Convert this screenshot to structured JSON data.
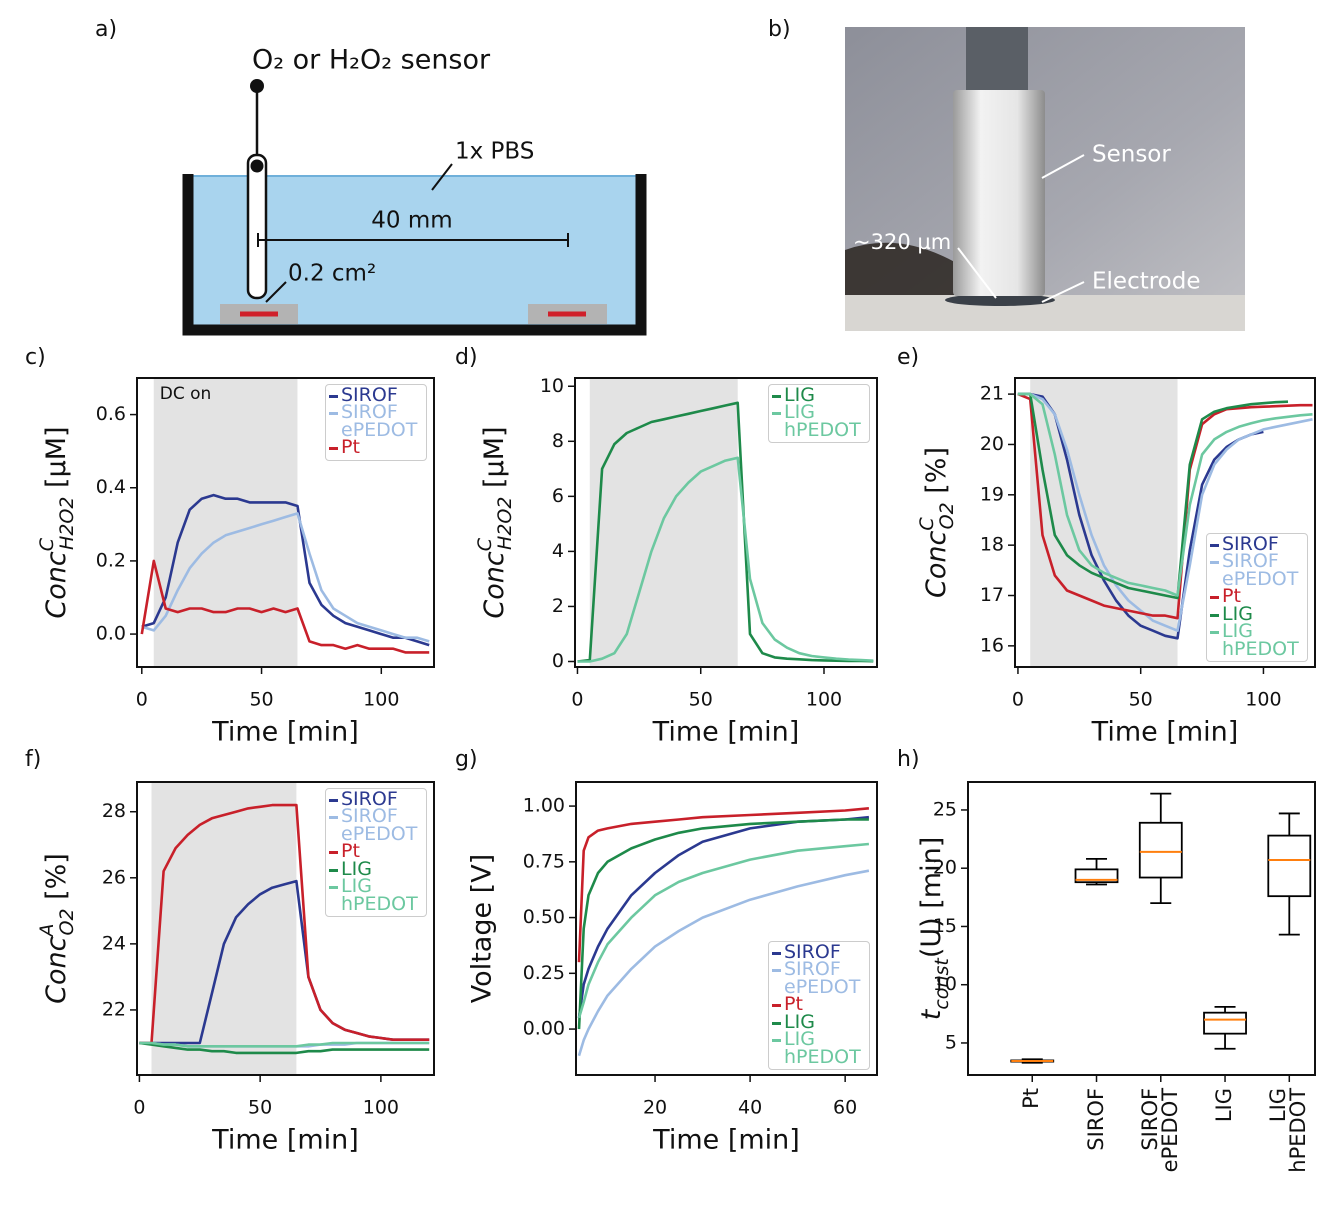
{
  "diagram": {
    "panel": "a)",
    "sensor_label": "O₂ or H₂O₂ sensor",
    "medium_label": "1x PBS",
    "distance_label": "40 mm",
    "area_label": "0.2 cm²"
  },
  "photo": {
    "panel": "b)",
    "sensor_label": "Sensor",
    "gap_label": "~320 µm",
    "electrode_label": "Electrode"
  },
  "chart_data": [
    {
      "type": "line",
      "panel": "c)",
      "annotation": "DC on",
      "shaded_x": [
        5,
        65
      ],
      "xlabel": "Time [min]",
      "ylabel": {
        "text": "Conc",
        "sup": "C",
        "sub": "H2O2",
        "unit": " [µM]"
      },
      "xlim": [
        -2,
        122
      ],
      "ylim": [
        -0.09,
        0.7
      ],
      "xticks": [
        0,
        50,
        100
      ],
      "yticks": [
        {
          "value": 0,
          "label": "0.0"
        },
        0.2,
        0.4,
        0.6
      ],
      "legend": "upper right",
      "x": [
        0,
        5,
        10,
        15,
        20,
        25,
        30,
        35,
        40,
        45,
        50,
        55,
        60,
        65,
        70,
        75,
        80,
        85,
        90,
        95,
        100,
        105,
        110,
        115,
        120
      ],
      "series": [
        {
          "name": "SIROF",
          "color": "#2b3990",
          "values": [
            0.02,
            0.03,
            0.1,
            0.25,
            0.34,
            0.37,
            0.38,
            0.37,
            0.37,
            0.36,
            0.36,
            0.36,
            0.36,
            0.35,
            0.14,
            0.08,
            0.05,
            0.03,
            0.02,
            0.01,
            0.0,
            -0.01,
            -0.01,
            -0.02,
            -0.03
          ]
        },
        {
          "name": "SIROF ePEDOT",
          "color": "#9dbbe3",
          "values": [
            0.02,
            0.01,
            0.05,
            0.12,
            0.18,
            0.22,
            0.25,
            0.27,
            0.28,
            0.29,
            0.3,
            0.31,
            0.32,
            0.33,
            0.22,
            0.12,
            0.07,
            0.05,
            0.03,
            0.02,
            0.01,
            0.0,
            -0.01,
            -0.01,
            -0.02
          ]
        },
        {
          "name": "Pt",
          "color": "#c8202a",
          "values": [
            0.0,
            0.2,
            0.07,
            0.06,
            0.07,
            0.07,
            0.06,
            0.06,
            0.07,
            0.07,
            0.06,
            0.07,
            0.06,
            0.07,
            -0.02,
            -0.03,
            -0.03,
            -0.04,
            -0.03,
            -0.04,
            -0.04,
            -0.04,
            -0.05,
            -0.05,
            -0.05
          ]
        }
      ]
    },
    {
      "type": "line",
      "panel": "d)",
      "shaded_x": [
        5,
        65
      ],
      "xlabel": "Time [min]",
      "ylabel": {
        "text": "Conc",
        "sup": "C",
        "sub": "H2O2",
        "unit": " [µM]"
      },
      "xlim": [
        -1,
        121.5
      ],
      "ylim": [
        -0.2,
        10.3
      ],
      "xticks": [
        0,
        50,
        100
      ],
      "yticks": [
        0,
        2,
        4,
        6,
        8,
        10
      ],
      "legend": "upper right",
      "x": [
        0,
        5,
        10,
        15,
        20,
        25,
        30,
        35,
        40,
        45,
        50,
        55,
        60,
        65,
        70,
        75,
        80,
        85,
        90,
        95,
        100,
        105,
        110,
        115,
        120
      ],
      "series": [
        {
          "name": "LIG",
          "color": "#1e8a4a",
          "values": [
            0,
            0.05,
            7.0,
            7.9,
            8.3,
            8.5,
            8.7,
            8.8,
            8.9,
            9.0,
            9.1,
            9.2,
            9.3,
            9.4,
            1.0,
            0.3,
            0.15,
            0.1,
            0.08,
            0.05,
            0.04,
            0.03,
            0.02,
            0.02,
            0.01
          ]
        },
        {
          "name": "LIG hPEDOT",
          "color": "#6cc8a0",
          "values": [
            0,
            0,
            0.1,
            0.3,
            1.0,
            2.5,
            4.0,
            5.2,
            6.0,
            6.5,
            6.9,
            7.1,
            7.3,
            7.4,
            3.0,
            1.4,
            0.8,
            0.5,
            0.3,
            0.2,
            0.15,
            0.1,
            0.07,
            0.05,
            0.03
          ]
        }
      ]
    },
    {
      "type": "line",
      "panel": "e)",
      "shaded_x": [
        5,
        65
      ],
      "xlabel": "Time [min]",
      "ylabel": {
        "text": "Conc",
        "sup": "C",
        "sub": "O2",
        "unit": " [%]"
      },
      "xlim": [
        -1.2,
        121
      ],
      "ylim": [
        15.58,
        21.32
      ],
      "xticks": [
        0,
        50,
        100
      ],
      "yticks": [
        16,
        17,
        18,
        19,
        20,
        21
      ],
      "legend": "lower right",
      "x": [
        0,
        5,
        10,
        15,
        20,
        25,
        30,
        35,
        40,
        45,
        50,
        55,
        60,
        65,
        70,
        75,
        80,
        85,
        90,
        95,
        100,
        105,
        110,
        115,
        120
      ],
      "series": [
        {
          "name": "SIROF",
          "color": "#2b3990",
          "values": [
            21.0,
            21.0,
            20.95,
            20.6,
            19.7,
            18.6,
            17.8,
            17.3,
            16.9,
            16.6,
            16.4,
            16.3,
            16.2,
            16.15,
            17.9,
            19.2,
            19.7,
            19.95,
            20.1,
            20.2,
            20.25,
            null,
            null,
            null,
            null
          ]
        },
        {
          "name": "SIROF ePEDOT",
          "color": "#9dbbe3",
          "values": [
            21.0,
            21.0,
            20.9,
            20.6,
            19.9,
            19.0,
            18.2,
            17.6,
            17.2,
            16.9,
            16.7,
            16.5,
            16.4,
            16.3,
            17.6,
            19.0,
            19.6,
            19.9,
            20.1,
            20.2,
            20.3,
            20.35,
            20.4,
            20.45,
            20.5
          ]
        },
        {
          "name": "Pt",
          "color": "#c8202a",
          "values": [
            21.0,
            20.9,
            18.2,
            17.4,
            17.1,
            17.0,
            16.9,
            16.8,
            16.75,
            16.7,
            16.65,
            16.6,
            16.6,
            16.55,
            19.5,
            20.4,
            20.6,
            20.7,
            20.72,
            20.74,
            20.75,
            20.76,
            20.77,
            20.78,
            20.78
          ]
        },
        {
          "name": "LIG",
          "color": "#1e8a4a",
          "values": [
            21.0,
            21.0,
            19.5,
            18.2,
            17.8,
            17.6,
            17.45,
            17.35,
            17.25,
            17.15,
            17.1,
            17.05,
            17.0,
            16.95,
            19.6,
            20.5,
            20.65,
            20.72,
            20.76,
            20.8,
            20.82,
            20.84,
            20.85,
            null,
            null
          ]
        },
        {
          "name": "LIG hPEDOT",
          "color": "#6cc8a0",
          "values": [
            21.0,
            21.0,
            20.8,
            19.8,
            18.6,
            17.9,
            17.6,
            17.45,
            17.35,
            17.25,
            17.2,
            17.15,
            17.1,
            17.0,
            18.8,
            19.8,
            20.1,
            20.25,
            20.35,
            20.42,
            20.48,
            20.52,
            20.55,
            20.58,
            20.6
          ]
        }
      ]
    },
    {
      "type": "line",
      "panel": "f)",
      "shaded_x": [
        5,
        65
      ],
      "xlabel": "Time [min]",
      "ylabel": {
        "text": "Conc",
        "sup": "A",
        "sub": "O2",
        "unit": " [%]"
      },
      "xlim": [
        -1,
        122
      ],
      "ylim": [
        20.03,
        28.9
      ],
      "xticks": [
        0,
        50,
        100
      ],
      "yticks": [
        22,
        24,
        26,
        28
      ],
      "legend": "upper right",
      "x": [
        0,
        5,
        10,
        15,
        20,
        25,
        30,
        35,
        40,
        45,
        50,
        55,
        60,
        65,
        70,
        75,
        80,
        85,
        90,
        95,
        100,
        105,
        110,
        115,
        120
      ],
      "series": [
        {
          "name": "SIROF",
          "color": "#2b3990",
          "values": [
            21.0,
            21.0,
            21.0,
            21.0,
            21.0,
            21.0,
            22.5,
            24.0,
            24.8,
            25.2,
            25.5,
            25.7,
            25.8,
            25.9,
            23.0,
            22.0,
            21.6,
            21.4,
            21.3,
            21.2,
            21.15,
            21.1,
            21.1,
            21.1,
            21.1
          ]
        },
        {
          "name": "SIROF ePEDOT",
          "color": "#9dbbe3",
          "values": [
            21.0,
            21.0,
            20.95,
            20.95,
            20.9,
            20.9,
            20.9,
            20.9,
            20.9,
            20.9,
            20.9,
            20.9,
            20.9,
            20.9,
            20.9,
            20.95,
            20.95,
            20.95,
            21.0,
            21.0,
            21.0,
            21.0,
            21.0,
            21.0,
            21.0
          ]
        },
        {
          "name": "Pt",
          "color": "#c8202a",
          "values": [
            21.0,
            21.0,
            26.2,
            26.9,
            27.3,
            27.6,
            27.8,
            27.9,
            28.0,
            28.1,
            28.15,
            28.2,
            28.2,
            28.2,
            23.0,
            22.0,
            21.6,
            21.4,
            21.3,
            21.2,
            21.15,
            21.1,
            21.1,
            21.1,
            21.1
          ]
        },
        {
          "name": "LIG",
          "color": "#1e8a4a",
          "values": [
            21.0,
            20.95,
            20.9,
            20.85,
            20.8,
            20.8,
            20.75,
            20.75,
            20.7,
            20.7,
            20.7,
            20.7,
            20.7,
            20.7,
            20.75,
            20.75,
            20.8,
            20.8,
            20.8,
            20.8,
            20.8,
            20.8,
            20.8,
            20.8,
            20.8
          ]
        },
        {
          "name": "LIG hPEDOT",
          "color": "#6cc8a0",
          "values": [
            21.0,
            21.0,
            20.95,
            20.95,
            20.9,
            20.9,
            20.9,
            20.9,
            20.9,
            20.9,
            20.9,
            20.9,
            20.9,
            20.9,
            20.95,
            20.95,
            21.0,
            21.0,
            21.0,
            21.0,
            21.0,
            21.0,
            21.0,
            21.0,
            21.0
          ]
        }
      ]
    },
    {
      "type": "line",
      "panel": "g)",
      "xlabel": "Time [min]",
      "ylabel": "Voltage [V]",
      "xlim": [
        3.37,
        66.7
      ],
      "ylim": [
        -0.206,
        1.108
      ],
      "xticks": [
        20,
        40,
        60
      ],
      "yticks": [
        {
          "value": 0,
          "label": "0.00"
        },
        {
          "value": 0.25,
          "label": "0.25"
        },
        {
          "value": 0.5,
          "label": "0.50"
        },
        {
          "value": 0.75,
          "label": "0.75"
        },
        {
          "value": 1,
          "label": "1.00"
        }
      ],
      "legend": "lower right",
      "x": [
        4,
        5,
        6,
        8,
        10,
        15,
        20,
        25,
        30,
        40,
        50,
        60,
        65
      ],
      "series": [
        {
          "name": "SIROF",
          "color": "#2b3990",
          "values": [
            0.05,
            0.2,
            0.27,
            0.37,
            0.45,
            0.6,
            0.7,
            0.78,
            0.84,
            0.9,
            0.93,
            0.94,
            0.95
          ]
        },
        {
          "name": "SIROF ePEDOT",
          "color": "#9dbbe3",
          "values": [
            -0.12,
            -0.05,
            0.0,
            0.08,
            0.15,
            0.27,
            0.37,
            0.44,
            0.5,
            0.58,
            0.64,
            0.69,
            0.71
          ]
        },
        {
          "name": "Pt",
          "color": "#c8202a",
          "values": [
            0.3,
            0.8,
            0.86,
            0.89,
            0.9,
            0.92,
            0.93,
            0.94,
            0.95,
            0.96,
            0.97,
            0.98,
            0.99
          ]
        },
        {
          "name": "LIG",
          "color": "#1e8a4a",
          "values": [
            0.0,
            0.45,
            0.6,
            0.7,
            0.75,
            0.81,
            0.85,
            0.88,
            0.9,
            0.92,
            0.93,
            0.94,
            0.94
          ]
        },
        {
          "name": "LIG hPEDOT",
          "color": "#6cc8a0",
          "values": [
            0.05,
            0.12,
            0.2,
            0.3,
            0.38,
            0.5,
            0.6,
            0.66,
            0.7,
            0.76,
            0.8,
            0.82,
            0.83
          ]
        }
      ]
    },
    {
      "type": "box",
      "panel": "h)",
      "ylabel": {
        "text": "t",
        "sub": "const",
        "unit": "(U) [min]"
      },
      "ylim": [
        2.25,
        27.4
      ],
      "yticks": [
        5,
        10,
        15,
        20,
        25
      ],
      "categories": [
        "Pt",
        "SIROF",
        "SIROF ePEDOT",
        "LIG",
        "LIG hPEDOT"
      ],
      "box_color": "#000000",
      "median_color": "#ff7f0e",
      "boxes": {
        "whislo": [
          3.3,
          18.6,
          17.0,
          4.5,
          14.3
        ],
        "q1": [
          3.4,
          18.8,
          19.2,
          5.8,
          17.6
        ],
        "median": [
          3.45,
          19.0,
          21.4,
          7.0,
          20.7
        ],
        "q3": [
          3.5,
          19.9,
          23.9,
          7.6,
          22.8
        ],
        "whishi": [
          3.6,
          20.8,
          26.4,
          8.1,
          24.7
        ]
      }
    }
  ]
}
